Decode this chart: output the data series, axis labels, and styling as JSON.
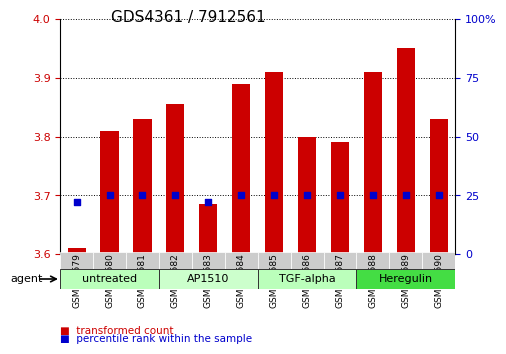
{
  "title": "GDS4361 / 7912561",
  "samples": [
    "GSM554579",
    "GSM554580",
    "GSM554581",
    "GSM554582",
    "GSM554583",
    "GSM554584",
    "GSM554585",
    "GSM554586",
    "GSM554587",
    "GSM554588",
    "GSM554589",
    "GSM554590"
  ],
  "transformed_count": [
    3.61,
    3.81,
    3.83,
    3.855,
    3.685,
    3.89,
    3.91,
    3.8,
    3.79,
    3.91,
    3.95,
    3.83
  ],
  "percentile_rank": [
    22,
    25,
    25,
    25,
    22,
    25,
    25,
    25,
    25,
    25,
    25,
    25
  ],
  "ylim_left": [
    3.6,
    4.0
  ],
  "ylim_right": [
    0,
    100
  ],
  "yticks_left": [
    3.6,
    3.7,
    3.8,
    3.9,
    4.0
  ],
  "yticks_right": [
    0,
    25,
    50,
    75,
    100
  ],
  "ytick_labels_right": [
    "0",
    "25",
    "50",
    "75",
    "100%"
  ],
  "bar_color": "#cc0000",
  "dot_color": "#0000cc",
  "agent_groups": [
    {
      "label": "untreated",
      "start": 0,
      "end": 3,
      "color": "#bbffbb"
    },
    {
      "label": "AP1510",
      "start": 3,
      "end": 6,
      "color": "#ccffcc"
    },
    {
      "label": "TGF-alpha",
      "start": 6,
      "end": 9,
      "color": "#bbffbb"
    },
    {
      "label": "Heregulin",
      "start": 9,
      "end": 12,
      "color": "#44dd44"
    }
  ],
  "legend_items": [
    {
      "label": "transformed count",
      "color": "#cc0000"
    },
    {
      "label": "percentile rank within the sample",
      "color": "#0000cc"
    }
  ],
  "agent_label": "agent",
  "title_fontsize": 11,
  "axis_label_color_left": "#cc0000",
  "axis_label_color_right": "#0000cc",
  "bar_bottom": 3.6,
  "bar_width": 0.55,
  "xlabel_bg": "#cccccc",
  "grid_yticks": [
    3.7,
    3.8,
    3.9,
    4.0
  ]
}
